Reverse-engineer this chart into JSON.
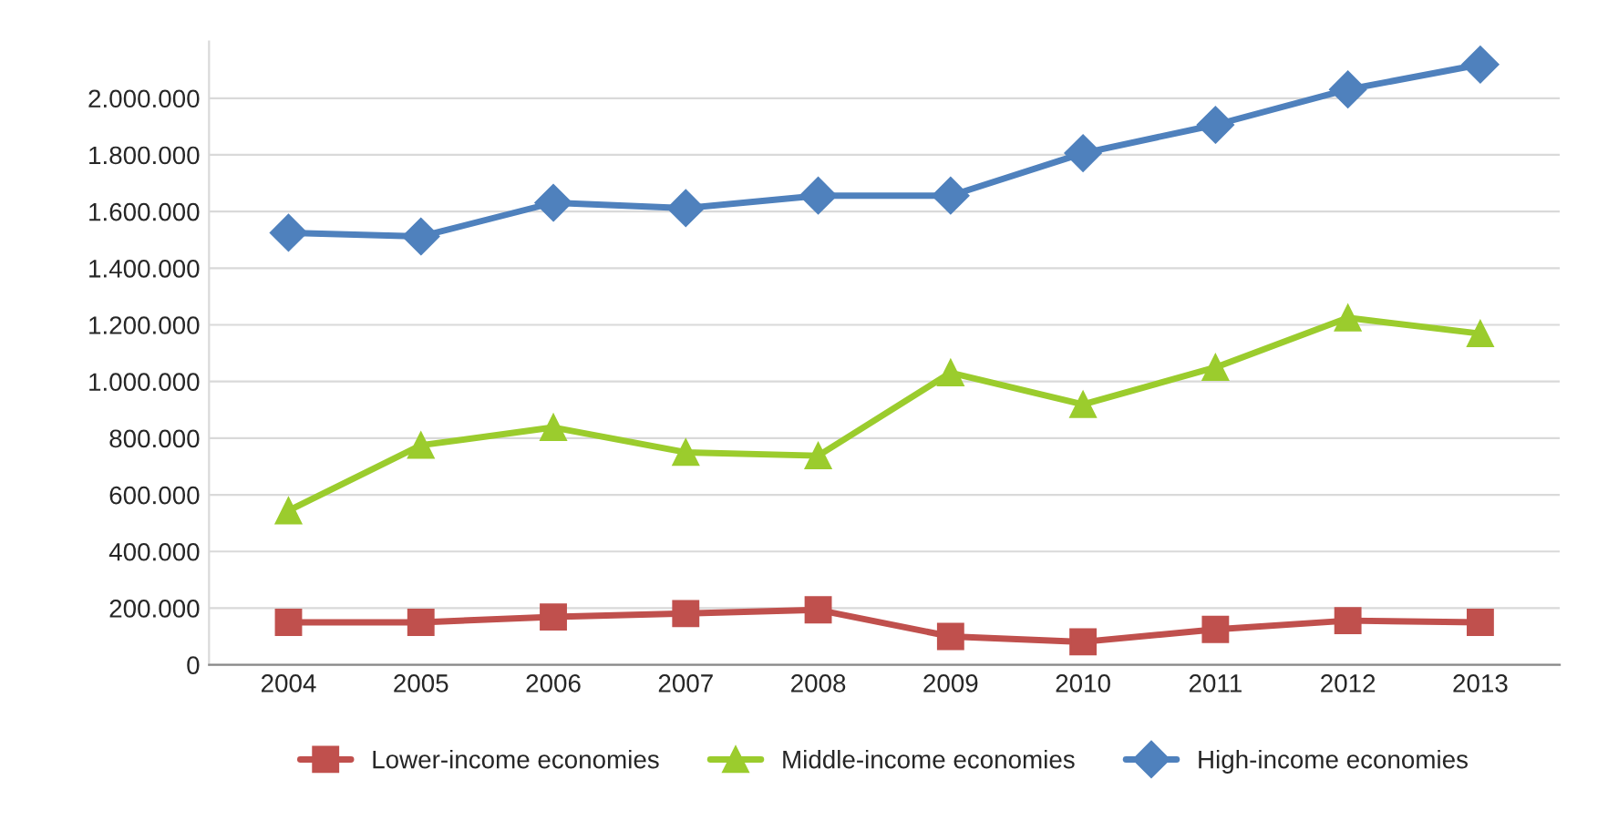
{
  "chart_data": {
    "type": "line",
    "categories": [
      "2004",
      "2005",
      "2006",
      "2007",
      "2008",
      "2009",
      "2010",
      "2011",
      "2012",
      "2013"
    ],
    "series": [
      {
        "name": "Lower-income economies",
        "color": "#c0504d",
        "marker": "square",
        "values": [
          150000,
          150000,
          169000,
          181000,
          194000,
          100000,
          81000,
          125000,
          156000,
          150000
        ]
      },
      {
        "name": "Middle-income economies",
        "color": "#9bcc2d",
        "marker": "triangle",
        "values": [
          544000,
          775000,
          838000,
          750000,
          738000,
          1031000,
          919000,
          1050000,
          1225000,
          1169000
        ]
      },
      {
        "name": "High-income economies",
        "color": "#4f81bd",
        "marker": "diamond",
        "values": [
          1525000,
          1512000,
          1631000,
          1612000,
          1656000,
          1656000,
          1806000,
          1906000,
          2031000,
          2119000
        ]
      }
    ],
    "ylim": [
      0,
      2200000
    ],
    "yticks": [
      0,
      {
        "value": 200000,
        "label": "200.000"
      },
      {
        "value": 400000,
        "label": "400.000"
      },
      {
        "value": 600000,
        "label": "600.000"
      },
      {
        "value": 800000,
        "label": "800.000"
      },
      {
        "value": 1000000,
        "label": "1.000.000"
      },
      {
        "value": 1200000,
        "label": "1.200.000"
      },
      {
        "value": 1400000,
        "label": "1.400.000"
      },
      {
        "value": 1600000,
        "label": "1.600.000"
      },
      {
        "value": 1800000,
        "label": "1.800.000"
      },
      {
        "value": 2000000,
        "label": "2.000.000"
      }
    ],
    "grid": "y",
    "legend": "bottom",
    "line_style": "solid"
  }
}
